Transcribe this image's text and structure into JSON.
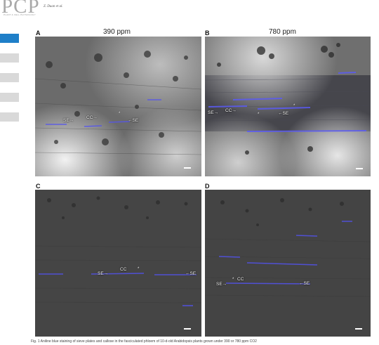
{
  "header": {
    "logo_text": "PCP",
    "logo_subtext": "PLANT & CELL PHYSIOLOGY",
    "authors": "Z. Duan et al."
  },
  "sidebar": {
    "tab_count": 5,
    "active_index": 0,
    "active_color": "#1f7fc8"
  },
  "columns": [
    "390 ppm",
    "780 ppm"
  ],
  "panels": [
    {
      "letter": "A",
      "labels": {
        "se_left": "SE→",
        "cc": "CC→",
        "se_right": "←SE"
      },
      "stars": [
        "*"
      ]
    },
    {
      "letter": "B",
      "labels": {
        "se_left": "SE→",
        "cc": "CC→",
        "se_right": "←SE"
      },
      "stars": [
        "*",
        "*"
      ]
    },
    {
      "letter": "C",
      "labels": {
        "se_left": "SE→",
        "cc": "CC",
        "se_right": "←SE"
      },
      "stars": [
        "*"
      ]
    },
    {
      "letter": "D",
      "labels": {
        "se_left": "SE→",
        "cc": "CC",
        "se_right": "←SE"
      },
      "stars": [
        "*"
      ]
    }
  ],
  "caption": "Fig. 1 Aniline blue staining of sieve plates and callose in the fasciculated phloem of 10-d-old Arabidopsis plants grown under 390 or 780 ppm CO2"
}
